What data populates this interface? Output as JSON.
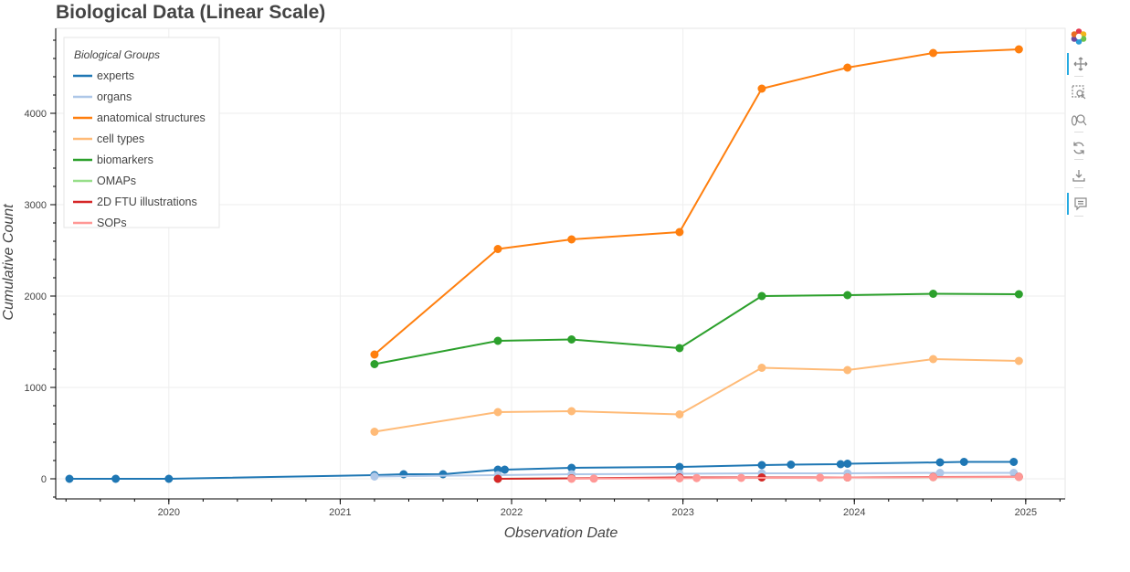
{
  "chart_data": {
    "type": "line",
    "title": "Biological Data (Linear Scale)",
    "xlabel": "Observation Date",
    "ylabel": "Cumulative Count",
    "xlim": [
      2019.34,
      2025.23
    ],
    "ylim": [
      -220,
      4930
    ],
    "x_ticks": [
      2020,
      2021,
      2022,
      2023,
      2024,
      2025
    ],
    "y_ticks": [
      0,
      1000,
      2000,
      3000,
      4000
    ],
    "grid": true,
    "legend_title": "Biological Groups",
    "legend_position": "top-left",
    "series": [
      {
        "name": "experts",
        "color": "#1f77b4",
        "x": [
          2019.42,
          2019.69,
          2020.0,
          2021.2,
          2021.37,
          2021.6,
          2021.92,
          2021.96,
          2022.35,
          2022.98,
          2023.46,
          2023.63,
          2023.92,
          2023.96,
          2024.5,
          2024.64,
          2024.93
        ],
        "y": [
          0,
          0,
          0,
          40,
          50,
          50,
          100,
          100,
          120,
          130,
          150,
          155,
          160,
          165,
          180,
          185,
          185
        ]
      },
      {
        "name": "organs",
        "color": "#aec7e8",
        "x": [
          2021.2,
          2021.92,
          2022.35,
          2022.98,
          2023.46,
          2023.96,
          2024.5,
          2024.93
        ],
        "y": [
          25,
          40,
          50,
          55,
          60,
          60,
          65,
          65
        ]
      },
      {
        "name": "anatomical structures",
        "color": "#ff7f0e",
        "x": [
          2021.2,
          2021.92,
          2022.35,
          2022.98,
          2023.46,
          2023.96,
          2024.46,
          2024.96
        ],
        "y": [
          1360,
          2515,
          2620,
          2700,
          4270,
          4500,
          4660,
          4700
        ]
      },
      {
        "name": "cell types",
        "color": "#ffbb78",
        "x": [
          2021.2,
          2021.92,
          2022.35,
          2022.98,
          2023.46,
          2023.96,
          2024.46,
          2024.96
        ],
        "y": [
          515,
          730,
          740,
          705,
          1215,
          1190,
          1310,
          1290
        ]
      },
      {
        "name": "biomarkers",
        "color": "#2ca02c",
        "x": [
          2021.2,
          2021.92,
          2022.35,
          2022.98,
          2023.46,
          2023.96,
          2024.46,
          2024.96
        ],
        "y": [
          1255,
          1510,
          1525,
          1430,
          2000,
          2010,
          2025,
          2020
        ]
      },
      {
        "name": "OMAPs",
        "color": "#98df8a",
        "x": [
          2021.92,
          2022.35,
          2022.98,
          2023.46,
          2023.96,
          2024.46,
          2024.96
        ],
        "y": [
          0,
          5,
          10,
          15,
          15,
          18,
          20
        ]
      },
      {
        "name": "2D FTU illustrations",
        "color": "#d62728",
        "x": [
          2021.92,
          2022.35,
          2022.98,
          2023.46,
          2023.96,
          2024.46,
          2024.96
        ],
        "y": [
          0,
          5,
          15,
          15,
          15,
          20,
          22
        ]
      },
      {
        "name": "SOPs",
        "color": "#ff9896",
        "x": [
          2022.35,
          2022.48,
          2022.98,
          2023.08,
          2023.34,
          2023.8,
          2023.96,
          2024.46,
          2024.96
        ],
        "y": [
          0,
          2,
          5,
          8,
          10,
          12,
          15,
          18,
          20
        ]
      }
    ]
  },
  "toolbar": {
    "tools": [
      {
        "icon": "bokeh-logo-icon",
        "active": false
      },
      {
        "icon": "pan-icon",
        "active": true
      },
      {
        "icon": "box-zoom-icon",
        "active": false
      },
      {
        "icon": "wheel-zoom-icon",
        "active": false
      },
      {
        "icon": "reset-icon",
        "active": false
      },
      {
        "icon": "save-icon",
        "active": false
      },
      {
        "icon": "hover-icon",
        "active": true
      }
    ]
  }
}
